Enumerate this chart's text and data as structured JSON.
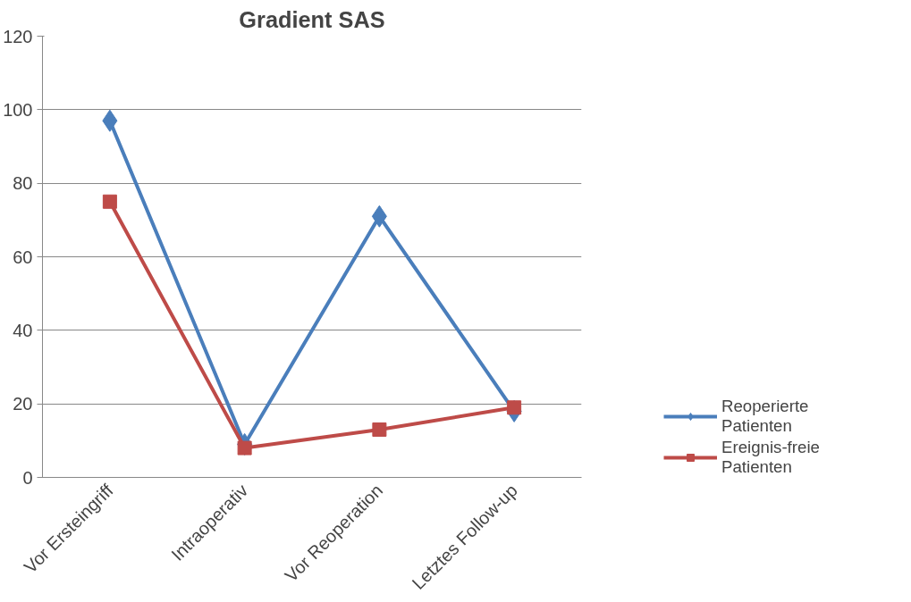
{
  "chart_data": {
    "type": "line",
    "title": "Gradient SAS",
    "categories": [
      "Vor Ersteingriff",
      "Intraoperativ",
      "Vor Reoperation",
      "Letztes Follow-up"
    ],
    "series": [
      {
        "name": "Reoperierte Patienten",
        "color": "#4a7ebb",
        "marker": "diamond",
        "values": [
          97,
          9,
          71,
          18
        ]
      },
      {
        "name": "Ereignis-freie Patienten",
        "color": "#be4b48",
        "marker": "square",
        "values": [
          75,
          8,
          13,
          19
        ]
      }
    ],
    "ylim": [
      0,
      120
    ],
    "yticks": [
      0,
      20,
      40,
      60,
      80,
      100,
      120
    ],
    "grid": "y",
    "legend": "bottom right",
    "line_style": "solid"
  }
}
